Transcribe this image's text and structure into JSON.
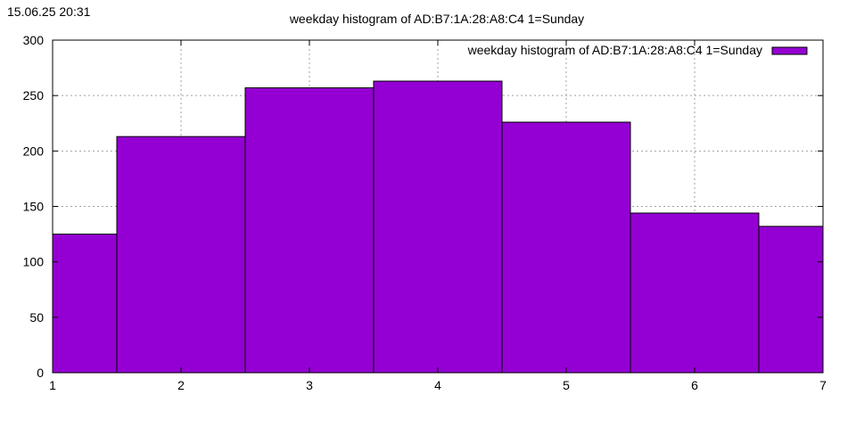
{
  "timestamp": "15.06.25 20:31",
  "chart_data": {
    "type": "bar",
    "title": "weekday histogram of AD:B7:1A:28:A8:C4 1=Sunday",
    "xlabel": "",
    "ylabel": "",
    "legend_position": "top-right",
    "grid": true,
    "xlim": [
      1,
      7
    ],
    "ylim": [
      0,
      300
    ],
    "xticks": [
      "1",
      "2",
      "3",
      "4",
      "5",
      "6",
      "7"
    ],
    "yticks": [
      "0",
      "50",
      "100",
      "150",
      "200",
      "250",
      "300"
    ],
    "categories": [
      1,
      2,
      3,
      4,
      5,
      6,
      7
    ],
    "series": [
      {
        "name": "weekday histogram of AD:B7:1A:28:A8:C4 1=Sunday",
        "color": "#9400d3",
        "values": [
          125,
          213,
          257,
          263,
          226,
          144,
          132
        ]
      }
    ]
  }
}
